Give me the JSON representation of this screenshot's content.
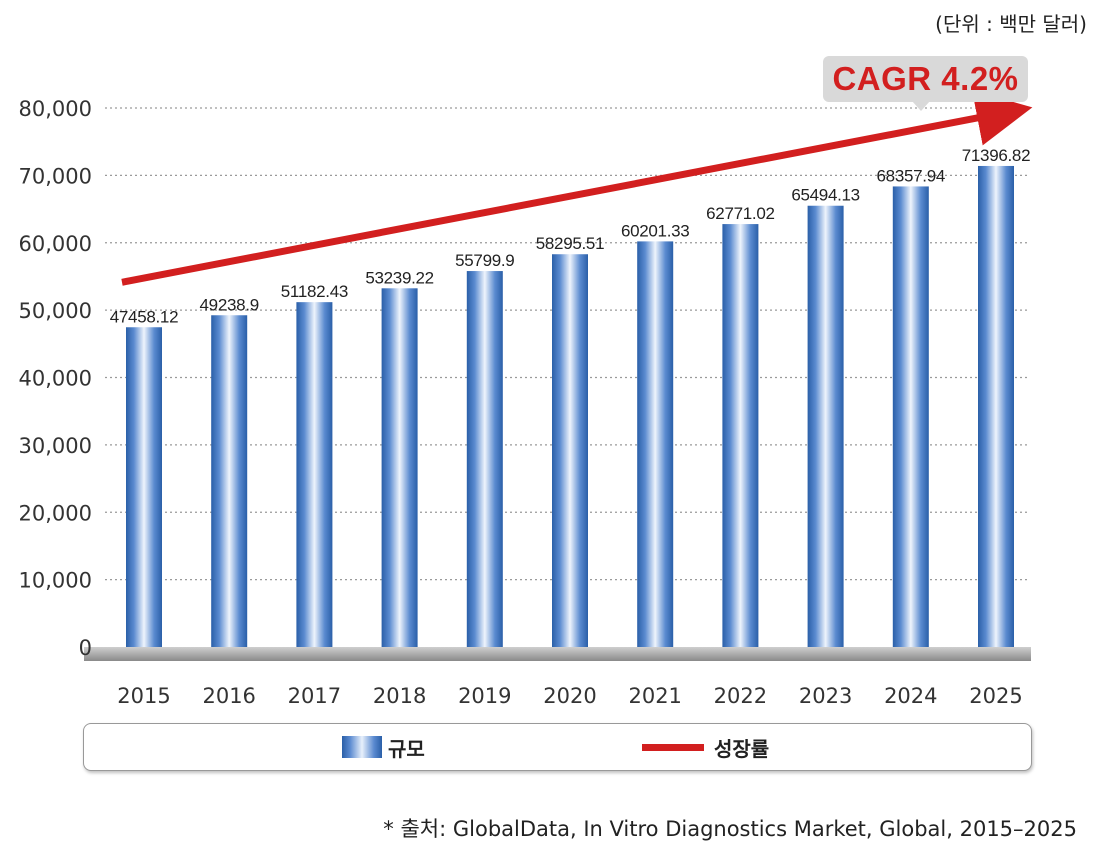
{
  "unit_label": "(단위 : 백만 달러)",
  "cagr_label": "CAGR 4.2%",
  "source_text": "* 출처: GlobalData, In Vitro Diagnostics Market, Global, 2015–2025",
  "legend": {
    "bar_label": "규모",
    "line_label": "성장률"
  },
  "colors": {
    "bar": "#3a6fb8",
    "line": "#d21f1f",
    "grid": "#9a9a9a"
  },
  "chart_data": {
    "type": "bar",
    "title": "",
    "xlabel": "",
    "ylabel": "",
    "ylim": [
      0,
      80000
    ],
    "yticks": [
      0,
      10000,
      20000,
      30000,
      40000,
      50000,
      60000,
      70000,
      80000
    ],
    "ytick_labels": [
      "0",
      "10,000",
      "20,000",
      "30,000",
      "40,000",
      "50,000",
      "60,000",
      "70,000",
      "80,000"
    ],
    "categories": [
      "2015",
      "2016",
      "2017",
      "2018",
      "2019",
      "2020",
      "2021",
      "2022",
      "2023",
      "2024",
      "2025"
    ],
    "values": [
      47458.12,
      49238.9,
      51182.43,
      53239.22,
      55799.9,
      58295.51,
      60201.33,
      62771.02,
      65494.13,
      68357.94,
      71396.82
    ],
    "value_labels": [
      "47458.12",
      "49238.9",
      "51182.43",
      "53239.22",
      "55799.9",
      "58295.51",
      "60201.33",
      "62771.02",
      "65494.13",
      "68357.94",
      "71396.82"
    ],
    "series": [
      {
        "name": "규모",
        "type": "bar"
      },
      {
        "name": "성장률",
        "type": "trend-arrow",
        "label": "CAGR 4.2%"
      }
    ]
  }
}
